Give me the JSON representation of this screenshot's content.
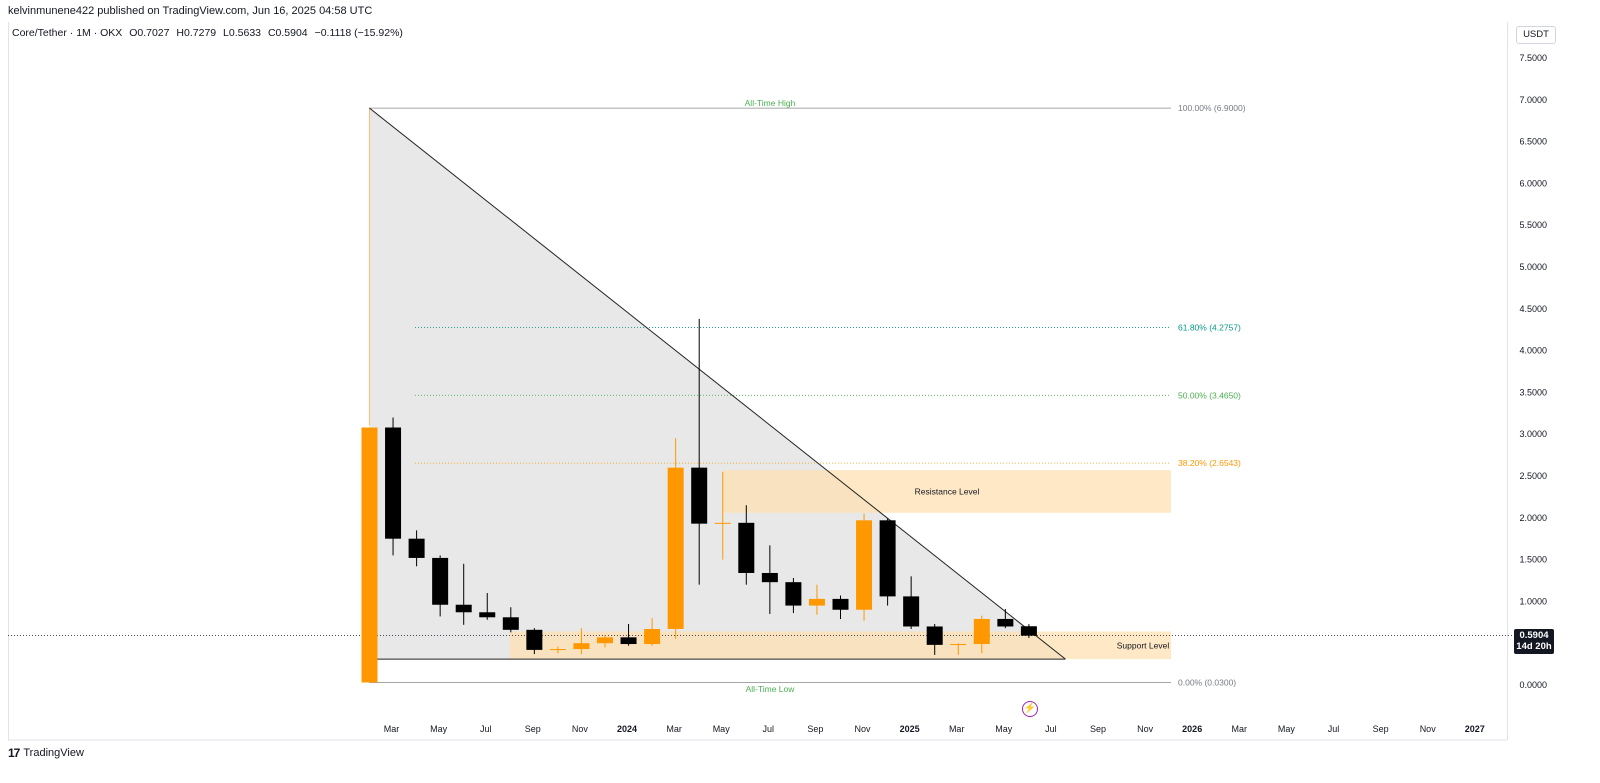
{
  "header": {
    "published": "kelvinmunene422 published on TradingView.com, Jun 16, 2025 04:58 UTC"
  },
  "legend": {
    "symbol": "Core/Tether · 1M · OKX",
    "open": "O0.7027",
    "high": "H0.7279",
    "low": "L0.5633",
    "close": "C0.5904",
    "change": "−0.1118 (−15.92%)"
  },
  "currency": "USDT",
  "last_price": {
    "value": "0.5904",
    "countdown": "14d 20h"
  },
  "footer": {
    "brand": "TradingView"
  },
  "icons": {
    "logo": "tradingview-logo-icon",
    "lightning": "lightning-icon"
  },
  "colors": {
    "up": "#ff9800",
    "down": "#000000",
    "fib_61": "#089981",
    "fib_50": "#4caf50",
    "fib_38": "#ff9800",
    "zone": "#ffe0b2",
    "triangle": "#e6e6e6",
    "ath_label": "#4caf50"
  },
  "chart_data": {
    "type": "candlestick",
    "interval": "1M",
    "y_axis": {
      "ticks": [
        "7.5000",
        "7.0000",
        "6.5000",
        "6.0000",
        "5.5000",
        "5.0000",
        "4.5000",
        "4.0000",
        "3.5000",
        "3.0000",
        "2.5000",
        "2.0000",
        "1.5000",
        "1.0000",
        "0.5000",
        "0.0000"
      ],
      "range": [
        -0.03,
        7.8
      ]
    },
    "x_axis": {
      "ticks": [
        "Mar",
        "May",
        "Jul",
        "Sep",
        "Nov",
        "2024",
        "Mar",
        "May",
        "Jul",
        "Sep",
        "Nov",
        "2025",
        "Mar",
        "May",
        "Jul",
        "Sep",
        "Nov",
        "2026",
        "Mar",
        "May",
        "Jul",
        "Sep",
        "Nov",
        "2027"
      ],
      "start": "2023-02",
      "bold_ticks": [
        "2024",
        "2025",
        "2026",
        "2027"
      ]
    },
    "candles": [
      {
        "t": "2023-02",
        "o": 0.03,
        "h": 3.08,
        "l": 0.03,
        "c": 3.08
      },
      {
        "t": "2023-03",
        "o": 3.08,
        "h": 3.2,
        "l": 1.55,
        "c": 1.75
      },
      {
        "t": "2023-04",
        "o": 1.75,
        "h": 1.85,
        "l": 1.42,
        "c": 1.52
      },
      {
        "t": "2023-05",
        "o": 1.52,
        "h": 1.55,
        "l": 0.82,
        "c": 0.96
      },
      {
        "t": "2023-06",
        "o": 0.96,
        "h": 1.45,
        "l": 0.72,
        "c": 0.87
      },
      {
        "t": "2023-07",
        "o": 0.87,
        "h": 1.1,
        "l": 0.78,
        "c": 0.81
      },
      {
        "t": "2023-08",
        "o": 0.81,
        "h": 0.93,
        "l": 0.63,
        "c": 0.66
      },
      {
        "t": "2023-09",
        "o": 0.66,
        "h": 0.68,
        "l": 0.37,
        "c": 0.42
      },
      {
        "t": "2023-10",
        "o": 0.42,
        "h": 0.46,
        "l": 0.38,
        "c": 0.43
      },
      {
        "t": "2023-11",
        "o": 0.43,
        "h": 0.68,
        "l": 0.37,
        "c": 0.5
      },
      {
        "t": "2023-12",
        "o": 0.5,
        "h": 0.6,
        "l": 0.45,
        "c": 0.57
      },
      {
        "t": "2024-01",
        "o": 0.57,
        "h": 0.73,
        "l": 0.47,
        "c": 0.49
      },
      {
        "t": "2024-02",
        "o": 0.49,
        "h": 0.8,
        "l": 0.47,
        "c": 0.67
      },
      {
        "t": "2024-03",
        "o": 0.67,
        "h": 2.95,
        "l": 0.55,
        "c": 2.6
      },
      {
        "t": "2024-04",
        "o": 2.6,
        "h": 4.38,
        "l": 1.2,
        "c": 1.93
      },
      {
        "t": "2024-05",
        "o": 1.93,
        "h": 2.55,
        "l": 1.5,
        "c": 1.94
      },
      {
        "t": "2024-06",
        "o": 1.94,
        "h": 2.15,
        "l": 1.2,
        "c": 1.34
      },
      {
        "t": "2024-07",
        "o": 1.34,
        "h": 1.67,
        "l": 0.85,
        "c": 1.23
      },
      {
        "t": "2024-08",
        "o": 1.23,
        "h": 1.28,
        "l": 0.86,
        "c": 0.95
      },
      {
        "t": "2024-09",
        "o": 0.95,
        "h": 1.2,
        "l": 0.84,
        "c": 1.03
      },
      {
        "t": "2024-10",
        "o": 1.03,
        "h": 1.07,
        "l": 0.79,
        "c": 0.9
      },
      {
        "t": "2024-11",
        "o": 0.9,
        "h": 2.05,
        "l": 0.77,
        "c": 1.97
      },
      {
        "t": "2024-12",
        "o": 1.97,
        "h": 1.99,
        "l": 0.95,
        "c": 1.06
      },
      {
        "t": "2025-01",
        "o": 1.06,
        "h": 1.3,
        "l": 0.67,
        "c": 0.7
      },
      {
        "t": "2025-02",
        "o": 0.7,
        "h": 0.73,
        "l": 0.36,
        "c": 0.48
      },
      {
        "t": "2025-03",
        "o": 0.48,
        "h": 0.5,
        "l": 0.36,
        "c": 0.49
      },
      {
        "t": "2025-04",
        "o": 0.49,
        "h": 0.83,
        "l": 0.38,
        "c": 0.79
      },
      {
        "t": "2025-05",
        "o": 0.79,
        "h": 0.91,
        "l": 0.68,
        "c": 0.7
      },
      {
        "t": "2025-06",
        "o": 0.7027,
        "h": 0.7279,
        "l": 0.5633,
        "c": 0.5904
      }
    ],
    "fib_levels": [
      {
        "label": "100.00% (6.9000)",
        "value": 6.9,
        "kind": "100"
      },
      {
        "label": "61.80% (4.2757)",
        "value": 4.2757,
        "kind": "61"
      },
      {
        "label": "50.00% (3.4650)",
        "value": 3.465,
        "kind": "50"
      },
      {
        "label": "38.20% (2.6543)",
        "value": 2.6543,
        "kind": "38"
      },
      {
        "label": "0.00% (0.0300)",
        "value": 0.03,
        "kind": "0"
      }
    ],
    "annotations": {
      "all_time_high": "All-Time High",
      "all_time_low": "All-Time Low",
      "resistance": {
        "label": "Resistance Level",
        "top": 2.57,
        "bottom": 2.06,
        "from": "2024-05",
        "to": "2025-08"
      },
      "support": {
        "label": "Support Level",
        "top": 0.64,
        "bottom": 0.31,
        "from": "2023-08",
        "to": "2025-08"
      }
    },
    "trendlines": {
      "descending": {
        "from": {
          "t": "2023-02",
          "v": 6.9
        },
        "to": {
          "t": "2025-07",
          "v": 0.31
        }
      },
      "base": {
        "from": {
          "t": "2023-02",
          "v": 0.31
        },
        "to": {
          "t": "2025-07",
          "v": 0.31
        }
      }
    },
    "current_price": 0.5904
  }
}
